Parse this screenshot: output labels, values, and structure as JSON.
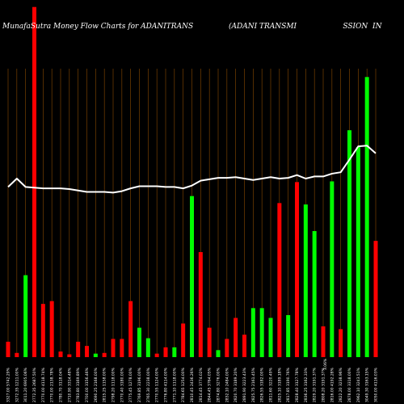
{
  "header": {
    "title_left": "MunafaSutra  Money Flow  Charts for ADANITRANS",
    "title_right": "(ADANI TRANSMI                    SSION  IN"
  },
  "chart_data": {
    "type": "bar",
    "title": "MunafaSutra  Money Flow  Charts for ADANITRANS",
    "subtitle": "(ADANI TRANSMI                    SSION  IN",
    "categories": [
      "3327.00 5742.29%",
      "3272.35 1211.00%",
      "3011.20 6905.06%",
      "2772.35 2687.50%",
      "2770.00 4118.74%",
      "2770.00 2138.78%",
      "2780.70 3118.04%",
      "2710.90 3314.48%",
      "2783.80 3169.89%",
      "2700.00 3156.46%",
      "2690.25 2168.00%",
      "2815.25 1158.00%",
      "2798.20 1118.00%",
      "2770.40 3180.00%",
      "2775.45 1278.00%",
      "2769.85 3196.00%",
      "2765.30 2238.00%",
      "2770.55 1124.00%",
      "2776.80 4114.00%",
      "2771.10 1118.00%",
      "2784.65 1254.00%",
      "2810.45 2436.26%",
      "2814.45 3774.02%",
      "2844.45 3764.05%",
      "2874.80 3276.00%",
      "2832.10 2484.00%",
      "2820.70 3189.20%",
      "2891.90 3223.43%",
      "2825.75 2161.45%",
      "2826.55 3182.00%",
      "2811.60 3220.49%",
      "2825.10 3189.18%",
      "2817.85 3190.76%",
      "2828.40 3127.78%",
      "2836.25 3162.33%",
      "2829.20 3191.37%",
      "2808.20 3191.37%",
      "2816.00 4192.28%",
      "2822.20 3238.96%",
      "2878.00 3318.00%",
      "2962.10 3243.51%",
      "3049.30 3163.15%",
      "3050.00 4116.03%"
    ],
    "bar_colors": [
      "red",
      "red",
      "green",
      "red",
      "red",
      "red",
      "red",
      "red",
      "red",
      "red",
      "green",
      "red",
      "red",
      "red",
      "red",
      "green",
      "green",
      "red",
      "red",
      "green",
      "red",
      "green",
      "red",
      "red",
      "green",
      "red",
      "red",
      "red",
      "green",
      "green",
      "green",
      "red",
      "green",
      "red",
      "green",
      "green",
      "red",
      "green",
      "red",
      "green",
      "green",
      "green",
      "red"
    ],
    "bar_values": [
      22,
      6,
      117,
      500,
      76,
      80,
      8,
      4,
      22,
      16,
      5,
      6,
      26,
      26,
      80,
      42,
      27,
      5,
      14,
      14,
      48,
      230,
      150,
      42,
      10,
      26,
      56,
      32,
      70,
      70,
      56,
      220,
      60,
      250,
      218,
      180,
      44,
      251,
      40,
      324,
      300,
      400,
      166
    ],
    "line_values": [
      243,
      255,
      243,
      242,
      241,
      241,
      241,
      240,
      238,
      236,
      236,
      236,
      235,
      237,
      241,
      244,
      244,
      244,
      243,
      243,
      241,
      245,
      252,
      254,
      256,
      256,
      257,
      255,
      253,
      255,
      257,
      255,
      256,
      260,
      255,
      258,
      258,
      262,
      264,
      282,
      301,
      302,
      291
    ],
    "extra_label": "3.06%",
    "ylim": [
      0,
      510
    ],
    "grid": true,
    "colors": {
      "background": "#000000",
      "grid": "#8a4a00",
      "up_bar": "#00ff00",
      "down_bar": "#ff0000",
      "line": "#ffffff",
      "text": "#ffffff"
    }
  }
}
